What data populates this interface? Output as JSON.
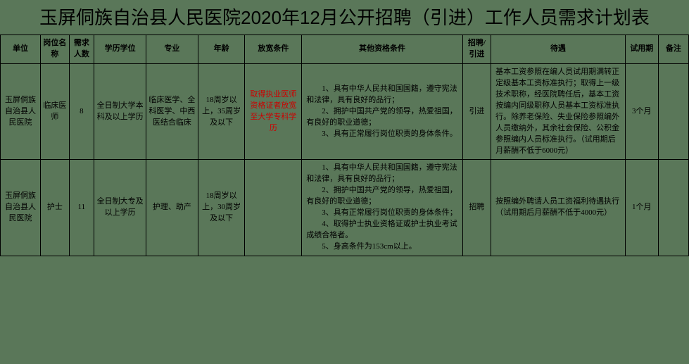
{
  "title": "玉屏侗族自治县人民医院2020年12月公开招聘（引进）工作人员需求计划表",
  "headers": {
    "unit": "单位",
    "position": "岗位名称",
    "count": "需求人数",
    "education": "学历学位",
    "major": "专业",
    "age": "年龄",
    "relax": "放宽条件",
    "other": "其他资格条件",
    "type": "招聘/引进",
    "treatment": "待遇",
    "probation": "试用期",
    "note": "备注"
  },
  "rows": [
    {
      "unit": "玉屏侗族自治县人民医院",
      "position": "临床医师",
      "count": "8",
      "education": "全日制大学本科及以上学历",
      "major": "临床医学、全科医学、中西医结合临床",
      "age": "18周岁以上，35周岁及以下",
      "relax": "取得执业医师资格证者放宽至大学专科学历",
      "other": "　　1、具有中华人民共和国国籍，遵守宪法和法律，具有良好的品行；\n　　2、拥护中国共产党的领导，热爱祖国，有良好的职业道德；\n　　3、具有正常履行岗位职责的身体条件。",
      "type": "引进",
      "treatment": "基本工资参照在编人员试用期满转正定级基本工资标准执行；取得上一级技术职称，经医院聘任后，基本工资按编内同级职称人员基本工资标准执行。除养老保险、失业保险参照编外人员缴纳外，其余社会保险、公积金参照编内人员标准执行。（试用期后月薪酬不低于6000元）",
      "probation": "3个月",
      "note": ""
    },
    {
      "unit": "玉屏侗族自治县人民医院",
      "position": "护士",
      "count": "11",
      "education": "全日制大专及以上学历",
      "major": "护理、助产",
      "age": "18周岁以上，30周岁及以下",
      "relax": "",
      "other": "　　1、具有中华人民共和国国籍，遵守宪法和法律，具有良好的品行；\n　　2、拥护中国共产党的领导，热爱祖国，有良好的职业道德；\n　　3、具有正常履行岗位职责的身体条件；\n　　4、取得护士执业资格证或护士执业考试成绩合格者。\n　　5、身高条件为153cm以上。",
      "type": "招聘",
      "treatment": "按照编外聘请人员工资福利待遇执行（试用期后月薪酬不低于4000元）",
      "probation": "1个月",
      "note": ""
    }
  ],
  "colors": {
    "background": "#5a7759",
    "border": "#000000",
    "text": "#000000",
    "highlight": "#cc0000"
  }
}
